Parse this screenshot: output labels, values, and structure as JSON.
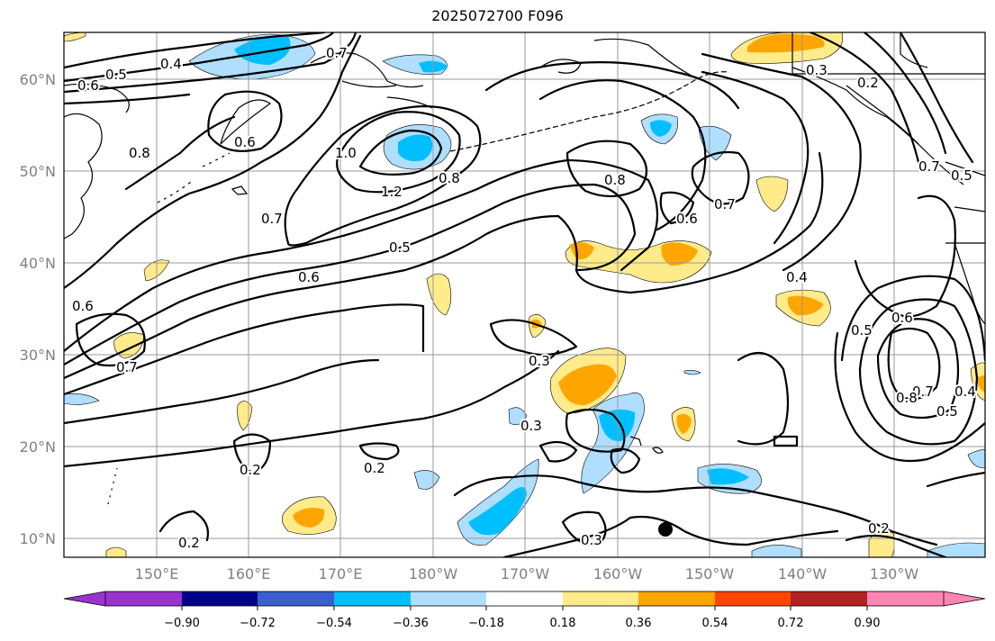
{
  "title": "2025072700 F096",
  "map": {
    "lat_labels": [
      "60°N",
      "50°N",
      "40°N",
      "30°N",
      "20°N",
      "10°N"
    ],
    "lon_labels": [
      "150°E",
      "160°E",
      "170°E",
      "180°W",
      "170°W",
      "160°W",
      "150°W",
      "140°W",
      "130°W"
    ],
    "contour_labels": [
      "0.4",
      "0.5",
      "0.6",
      "0.7",
      "0.8",
      "0.6",
      "0.7",
      "1.0",
      "1.2",
      "0.8",
      "0.5",
      "0.7",
      "0.6",
      "0.8",
      "0.6",
      "0.7",
      "0.3",
      "0.2",
      "0.4",
      "0.5",
      "0.6",
      "0.3",
      "0.3",
      "0.2",
      "0.2",
      "0.2",
      "0.3",
      "0.7",
      "0.8",
      "0.5",
      "0.4",
      "0.2",
      "0.7",
      "0.6",
      "0.5"
    ],
    "marker": "storm-center"
  },
  "colorbar": {
    "colors": [
      "#9933cc",
      "#00008b",
      "#3a5fcd",
      "#00bfff",
      "#afdeff",
      "#ffffff",
      "#ffeb8a",
      "#ffa500",
      "#ff4500",
      "#b22222",
      "#ff85b3"
    ],
    "tick_labels": [
      "−0.90",
      "−0.72",
      "−0.54",
      "−0.36",
      "−0.18",
      "0.18",
      "0.36",
      "0.54",
      "0.72",
      "0.90"
    ]
  }
}
